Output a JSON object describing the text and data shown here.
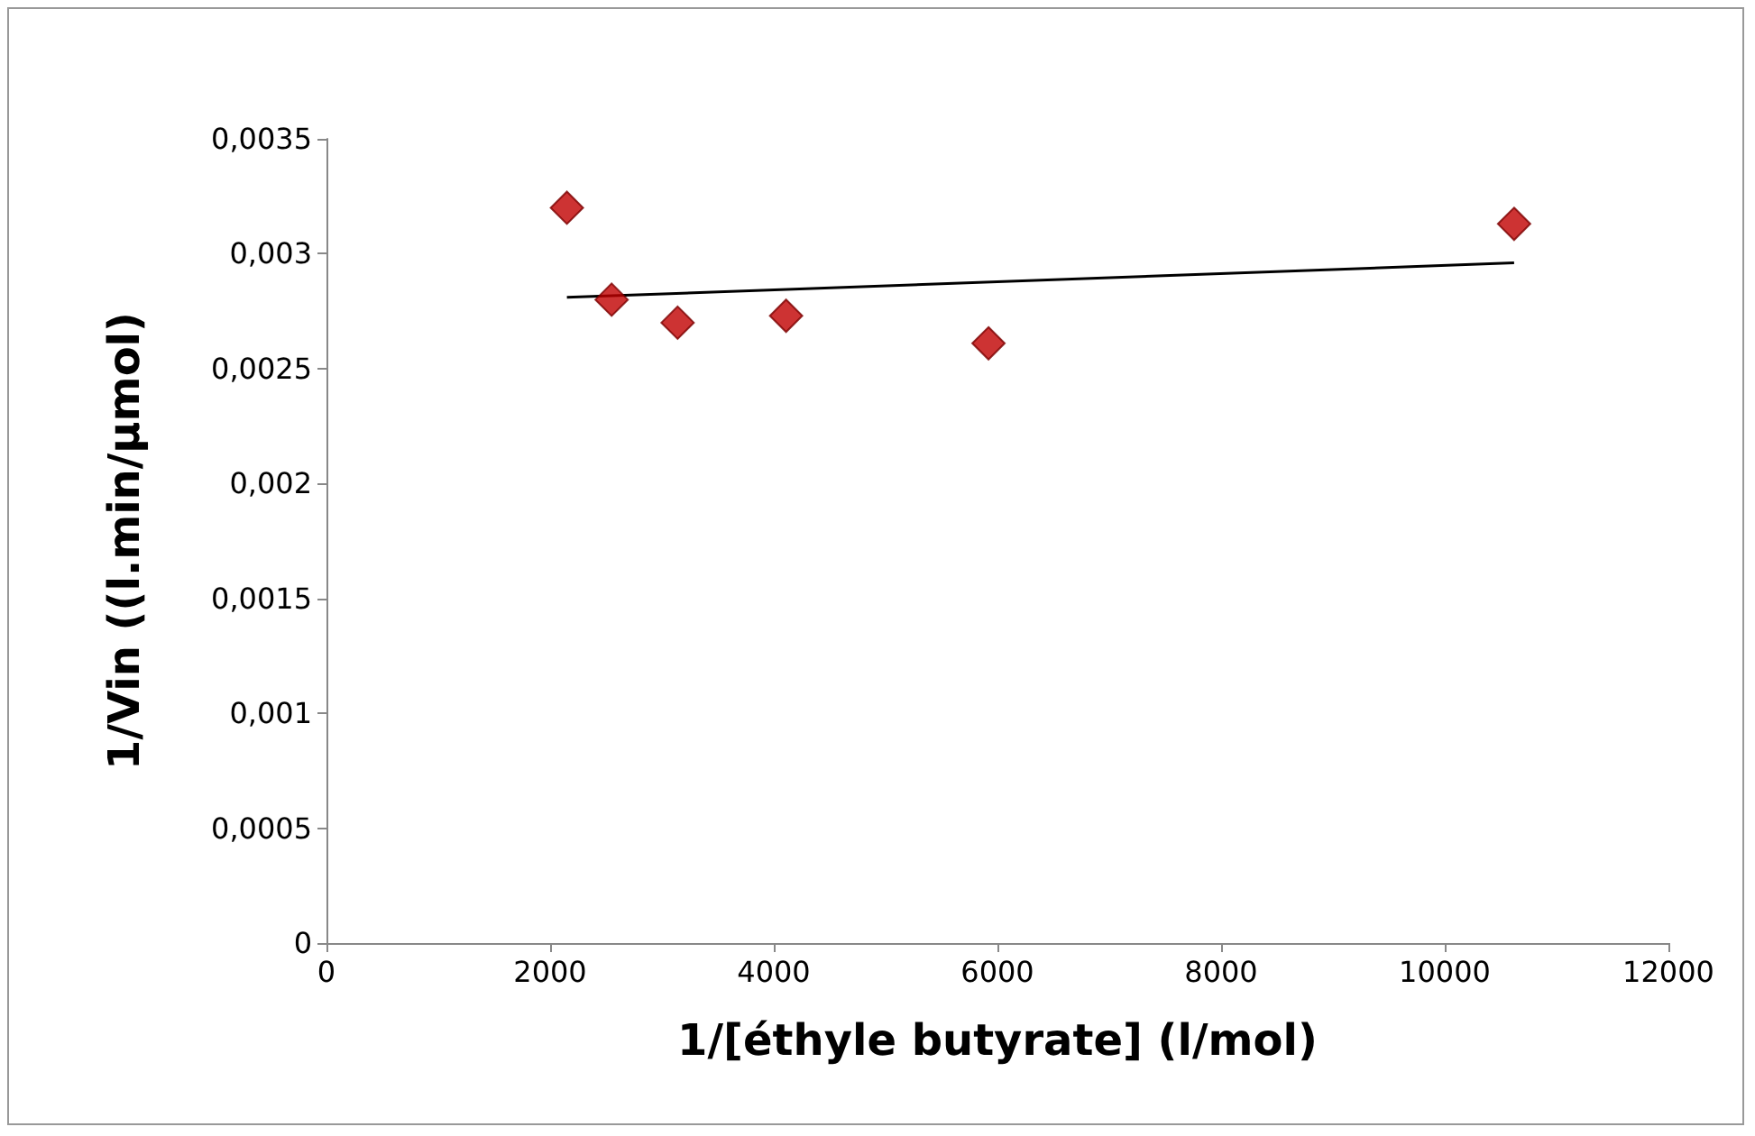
{
  "chart_data": {
    "type": "scatter",
    "xlabel": "1/[éthyle butyrate] (l/mol)",
    "ylabel": "1/Vin ((l.min/µmol)",
    "xlim": [
      0,
      12000
    ],
    "xticks": [
      0,
      2000,
      4000,
      6000,
      8000,
      10000,
      12000
    ],
    "ylim": [
      0,
      0.0035
    ],
    "yticks": [
      0,
      {
        "value": 0.0005,
        "label": "0,0005"
      },
      {
        "value": 0.001,
        "label": "0,001"
      },
      {
        "value": 0.0015,
        "label": "0,0015"
      },
      {
        "value": 0.002,
        "label": "0,002"
      },
      {
        "value": 0.0025,
        "label": "0,0025"
      },
      {
        "value": 0.003,
        "label": "0,003"
      },
      {
        "value": 0.0035,
        "label": "0,0035"
      }
    ],
    "grid": false,
    "marker": "diamond",
    "series": [
      {
        "color": "#c00000",
        "x": [
          2150,
          2550,
          3140,
          4110,
          5920,
          10620
        ],
        "values": [
          0.0032,
          0.0028,
          0.0027,
          0.00273,
          0.00261,
          0.00313
        ]
      },
      {
        "type": "line",
        "color": "#000000",
        "marker": "none",
        "x": [
          2150,
          10620
        ],
        "values": [
          0.00281,
          0.00296
        ]
      }
    ]
  }
}
